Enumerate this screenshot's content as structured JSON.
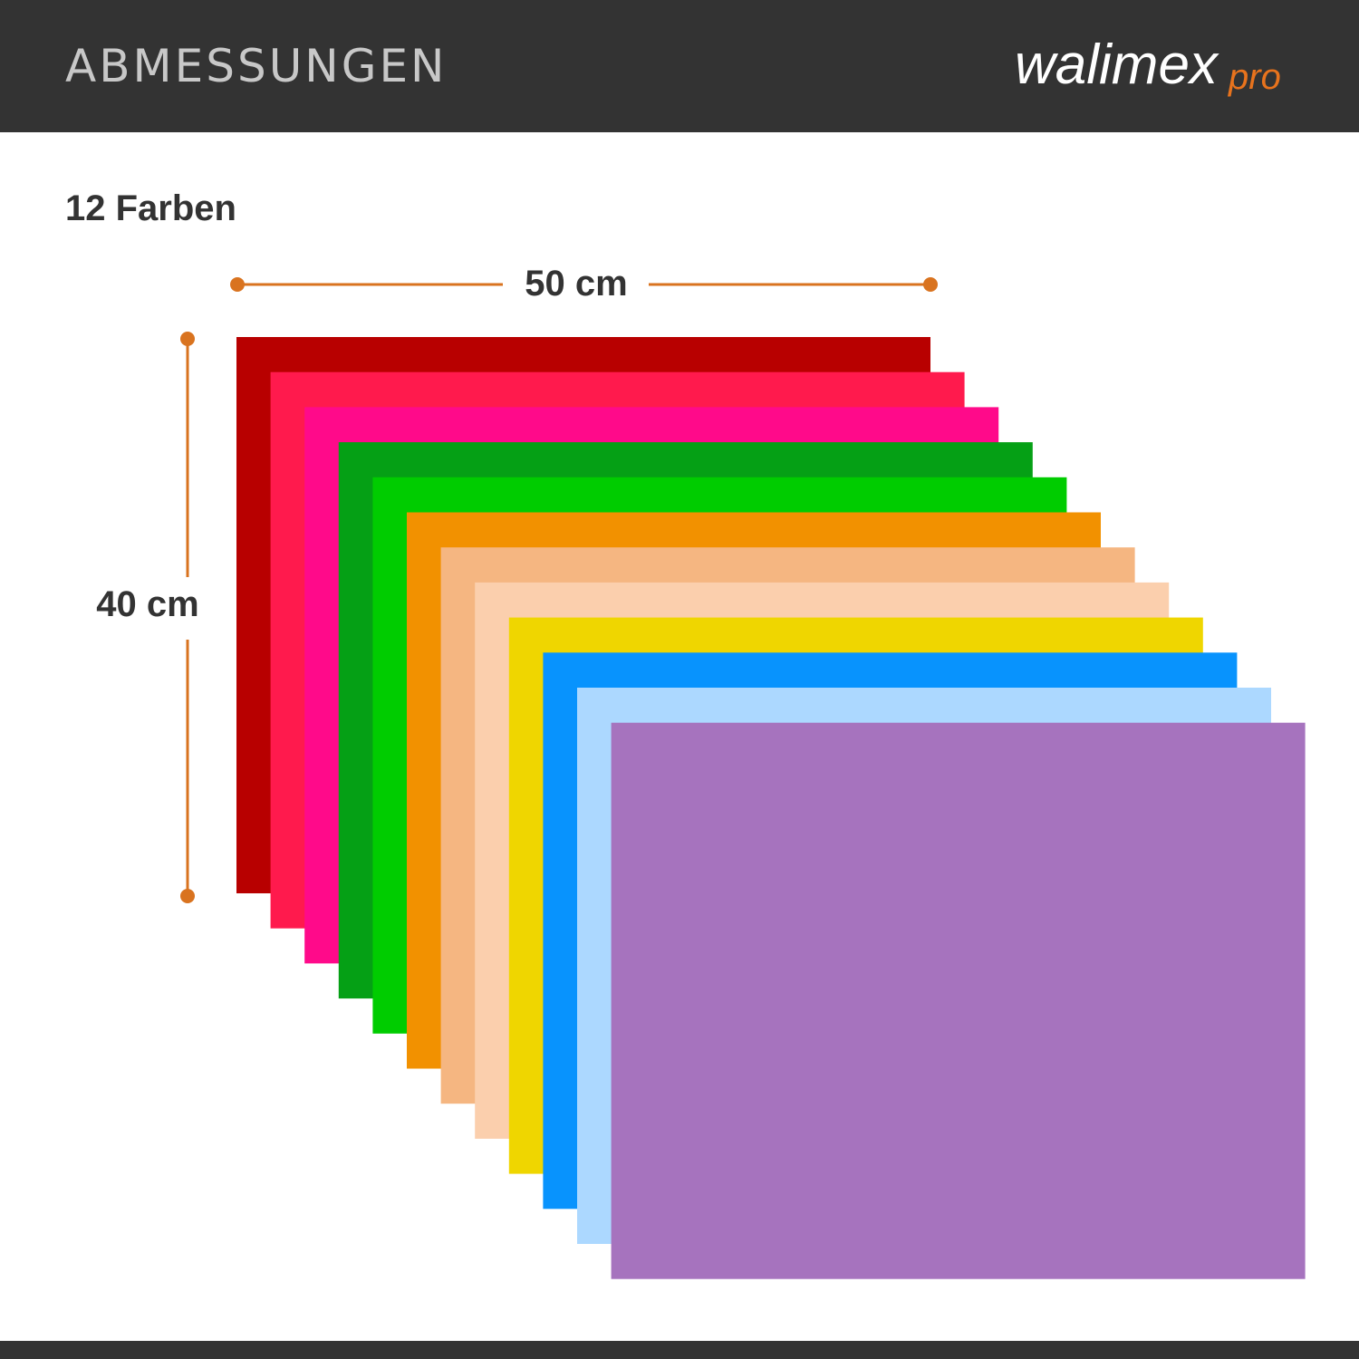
{
  "header": {
    "title": "ABMESSUNGEN",
    "brand": "walimex",
    "brand_suffix": "pro"
  },
  "subtitle": "12 Farben",
  "dimensions": {
    "width": "50 cm",
    "height": "40 cm"
  }
}
